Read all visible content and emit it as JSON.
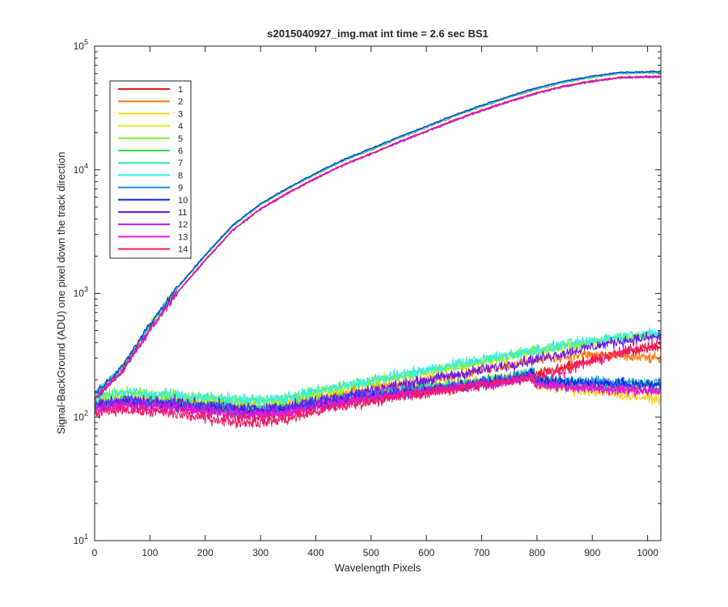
{
  "chart_data": {
    "type": "line",
    "title": "s2015040927_img.mat int time = 2.6 sec   BS1",
    "xlabel": "Wavelength Pixels",
    "ylabel": "Signal-BackGround (ADU) one pixel down the track direction",
    "xlim": [
      0,
      1024
    ],
    "ylim": [
      10,
      100000
    ],
    "yscale": "log",
    "grid": false,
    "legend_position": "top-left",
    "xticks": [
      0,
      100,
      200,
      300,
      400,
      500,
      600,
      700,
      800,
      900,
      1000
    ],
    "xtick_labels": [
      "0",
      "100",
      "200",
      "300",
      "400",
      "500",
      "600",
      "700",
      "800",
      "900",
      "1000"
    ],
    "yticks": [
      10,
      100,
      1000,
      10000,
      100000
    ],
    "ytick_base": "10",
    "ytick_exponents": [
      "1",
      "2",
      "3",
      "4",
      "5"
    ],
    "series": [
      {
        "name": "1",
        "color": "#e8160c",
        "group": "low",
        "base_x": [
          0,
          50,
          100,
          150,
          200,
          250,
          300,
          350,
          400,
          450,
          500,
          550,
          600,
          650,
          700,
          750,
          800,
          850,
          900,
          950,
          1024
        ],
        "base_y": [
          118,
          130,
          125,
          120,
          112,
          105,
          100,
          106,
          120,
          132,
          142,
          152,
          160,
          170,
          185,
          200,
          220,
          250,
          290,
          330,
          380
        ]
      },
      {
        "name": "2",
        "color": "#ff7a14",
        "group": "low",
        "base_x": [
          0,
          50,
          100,
          150,
          200,
          250,
          300,
          350,
          400,
          450,
          500,
          550,
          600,
          650,
          700,
          750,
          800,
          850,
          900,
          950,
          1024
        ],
        "base_y": [
          130,
          140,
          135,
          132,
          128,
          122,
          120,
          125,
          140,
          155,
          170,
          185,
          200,
          220,
          240,
          265,
          290,
          310,
          320,
          310,
          295
        ]
      },
      {
        "name": "3",
        "color": "#ffd21a",
        "group": "low",
        "base_x": [
          0,
          50,
          100,
          150,
          200,
          250,
          300,
          350,
          400,
          450,
          500,
          550,
          600,
          650,
          700,
          750,
          790,
          800,
          850,
          900,
          950,
          1024
        ],
        "base_y": [
          130,
          140,
          138,
          135,
          130,
          125,
          122,
          128,
          140,
          150,
          160,
          172,
          182,
          190,
          200,
          212,
          225,
          180,
          170,
          160,
          152,
          140
        ]
      },
      {
        "name": "4",
        "color": "#c8f02a",
        "group": "low",
        "base_x": [
          0,
          50,
          100,
          150,
          200,
          250,
          300,
          350,
          400,
          450,
          500,
          550,
          600,
          650,
          700,
          750,
          800,
          850,
          900,
          950,
          1024
        ],
        "base_y": [
          140,
          155,
          150,
          148,
          140,
          135,
          130,
          138,
          155,
          170,
          190,
          210,
          230,
          255,
          280,
          310,
          340,
          370,
          400,
          430,
          460
        ]
      },
      {
        "name": "5",
        "color": "#7aef3a",
        "group": "low",
        "base_x": [
          0,
          50,
          100,
          150,
          200,
          250,
          300,
          350,
          400,
          450,
          500,
          550,
          600,
          650,
          700,
          750,
          800,
          850,
          900,
          950,
          1024
        ],
        "base_y": [
          142,
          158,
          152,
          150,
          142,
          138,
          134,
          142,
          160,
          175,
          195,
          215,
          235,
          260,
          285,
          315,
          345,
          375,
          405,
          440,
          470
        ]
      },
      {
        "name": "6",
        "color": "#2ee84a",
        "group": "low",
        "base_x": [
          0,
          50,
          100,
          150,
          200,
          250,
          300,
          350,
          400,
          450,
          500,
          550,
          600,
          650,
          700,
          750,
          790,
          800,
          850,
          900,
          950,
          1024
        ],
        "base_y": [
          125,
          135,
          130,
          128,
          122,
          118,
          114,
          120,
          132,
          142,
          152,
          162,
          172,
          182,
          192,
          205,
          220,
          190,
          185,
          180,
          178,
          175
        ]
      },
      {
        "name": "7",
        "color": "#2ce8a0",
        "group": "low",
        "base_x": [
          0,
          50,
          100,
          150,
          200,
          250,
          300,
          350,
          400,
          450,
          500,
          550,
          600,
          650,
          700,
          750,
          790,
          800,
          850,
          900,
          950,
          1024
        ],
        "base_y": [
          128,
          138,
          133,
          130,
          124,
          119,
          115,
          121,
          133,
          143,
          153,
          163,
          173,
          183,
          194,
          208,
          240,
          200,
          195,
          190,
          188,
          185
        ]
      },
      {
        "name": "8",
        "color": "#2ef0f0",
        "group": "low",
        "base_x": [
          0,
          50,
          100,
          150,
          200,
          250,
          300,
          350,
          400,
          450,
          500,
          550,
          600,
          650,
          700,
          750,
          800,
          850,
          900,
          950,
          1024
        ],
        "base_y": [
          145,
          160,
          155,
          150,
          145,
          140,
          136,
          144,
          162,
          178,
          198,
          218,
          240,
          265,
          292,
          320,
          350,
          385,
          415,
          450,
          480
        ]
      },
      {
        "name": "9",
        "color": "#1a8ae0",
        "group": "low",
        "base_x": [
          0,
          50,
          100,
          150,
          200,
          250,
          300,
          350,
          400,
          450,
          500,
          550,
          600,
          650,
          700,
          750,
          790,
          800,
          850,
          900,
          950,
          1024
        ],
        "base_y": [
          124,
          134,
          130,
          127,
          121,
          116,
          112,
          118,
          130,
          140,
          150,
          160,
          170,
          180,
          190,
          205,
          235,
          200,
          196,
          192,
          190,
          188
        ]
      },
      {
        "name": "10",
        "color": "#0c28e8",
        "group": "low",
        "base_x": [
          0,
          50,
          100,
          150,
          200,
          250,
          300,
          350,
          400,
          450,
          500,
          550,
          600,
          650,
          700,
          750,
          790,
          800,
          850,
          900,
          950,
          1024
        ],
        "base_y": [
          120,
          130,
          126,
          123,
          117,
          113,
          110,
          115,
          126,
          136,
          146,
          156,
          166,
          176,
          186,
          200,
          230,
          195,
          190,
          187,
          184,
          182
        ]
      },
      {
        "name": "11",
        "color": "#6a1aee",
        "group": "low",
        "base_x": [
          0,
          50,
          100,
          150,
          200,
          250,
          300,
          350,
          400,
          450,
          500,
          550,
          600,
          650,
          700,
          750,
          800,
          850,
          900,
          950,
          1024
        ],
        "base_y": [
          125,
          140,
          135,
          132,
          126,
          120,
          116,
          122,
          136,
          150,
          165,
          180,
          198,
          218,
          240,
          265,
          295,
          330,
          370,
          410,
          450
        ]
      },
      {
        "name": "12",
        "color": "#b41ae8",
        "group": "low",
        "base_x": [
          0,
          50,
          100,
          150,
          200,
          250,
          300,
          350,
          400,
          450,
          500,
          550,
          600,
          650,
          700,
          750,
          790,
          800,
          850,
          900,
          950,
          1024
        ],
        "base_y": [
          118,
          128,
          124,
          120,
          114,
          110,
          106,
          112,
          124,
          134,
          144,
          154,
          164,
          174,
          184,
          198,
          215,
          185,
          178,
          172,
          168,
          165
        ]
      },
      {
        "name": "13",
        "color": "#f01ac8",
        "group": "low",
        "base_x": [
          0,
          50,
          100,
          150,
          200,
          250,
          300,
          350,
          400,
          450,
          500,
          550,
          600,
          650,
          700,
          750,
          790,
          800,
          850,
          900,
          950,
          1024
        ],
        "base_y": [
          112,
          122,
          118,
          115,
          110,
          106,
          102,
          108,
          120,
          130,
          140,
          150,
          160,
          170,
          180,
          194,
          210,
          182,
          176,
          170,
          166,
          162
        ]
      },
      {
        "name": "14",
        "color": "#f01a6a",
        "group": "low",
        "base_x": [
          0,
          50,
          100,
          150,
          200,
          250,
          300,
          350,
          400,
          450,
          500,
          550,
          600,
          650,
          700,
          750,
          800,
          850,
          900,
          950,
          1024
        ],
        "base_y": [
          105,
          115,
          110,
          105,
          98,
          92,
          90,
          96,
          110,
          122,
          134,
          146,
          158,
          170,
          182,
          196,
          215,
          240,
          280,
          330,
          390
        ]
      }
    ],
    "high_curve": {
      "base_x": [
        0,
        50,
        100,
        150,
        200,
        250,
        300,
        350,
        400,
        450,
        500,
        550,
        600,
        650,
        700,
        750,
        800,
        850,
        900,
        950,
        1024
      ],
      "base_y": [
        150,
        250,
        550,
        1100,
        2000,
        3500,
        5200,
        7000,
        9200,
        11800,
        14500,
        18000,
        22000,
        27000,
        32500,
        38500,
        45000,
        51000,
        56000,
        60000,
        61000
      ]
    }
  }
}
